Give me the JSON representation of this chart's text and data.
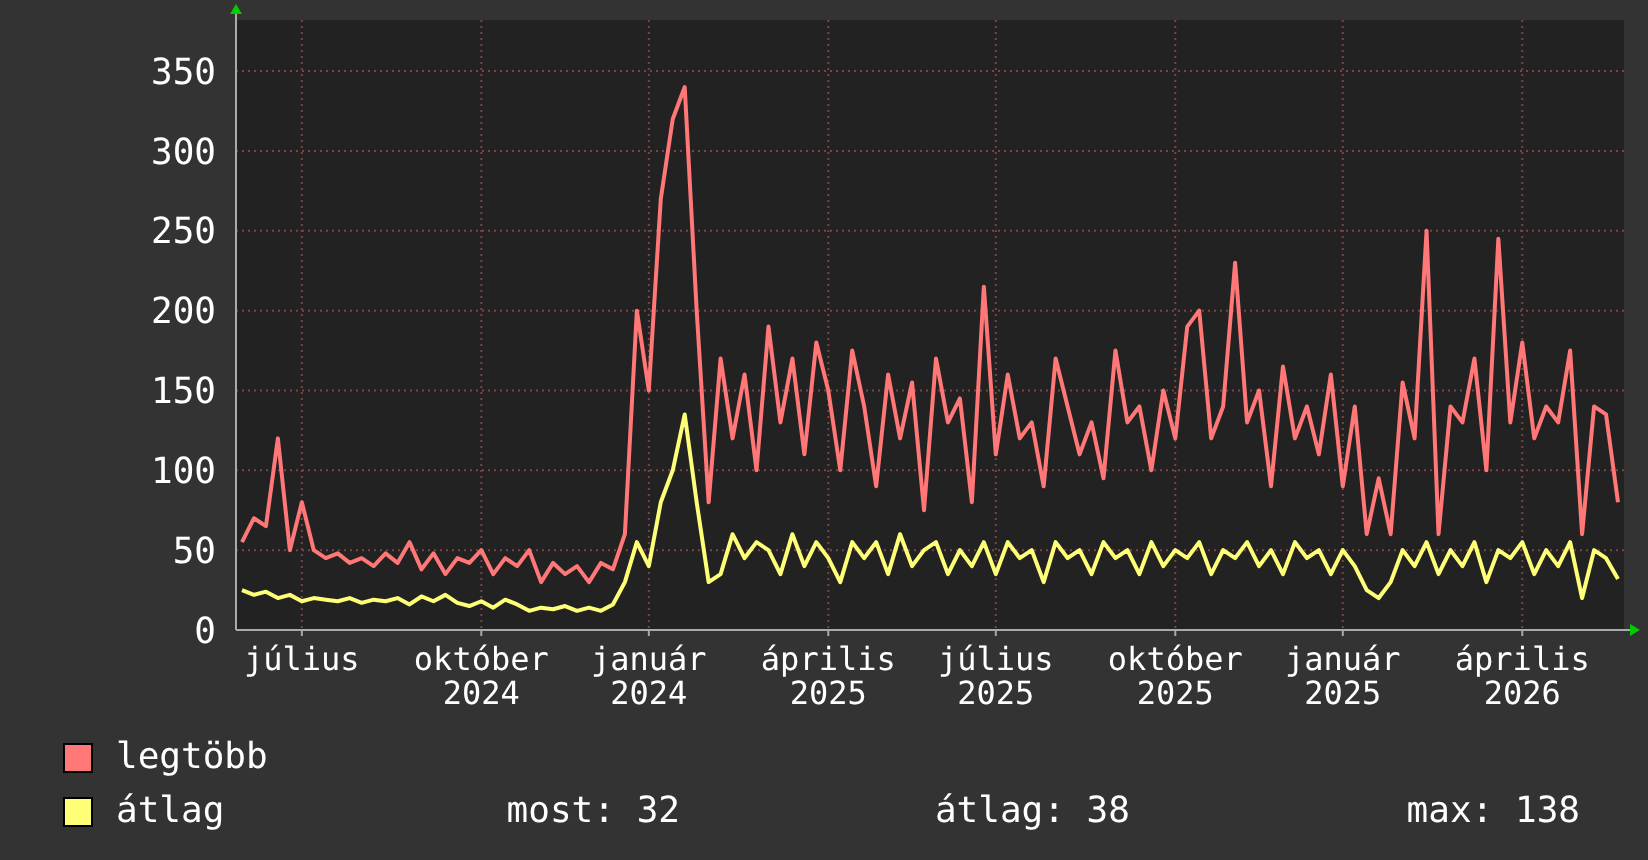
{
  "chart_data": {
    "type": "line",
    "categories": [
      null,
      null,
      null,
      null,
      null,
      "július",
      null,
      null,
      null,
      null,
      null,
      null,
      null,
      null,
      null,
      null,
      null,
      null,
      null,
      null,
      "október 2024",
      null,
      null,
      null,
      null,
      null,
      null,
      null,
      null,
      null,
      null,
      null,
      null,
      null,
      "január 2024",
      null,
      null,
      null,
      null,
      null,
      null,
      null,
      null,
      null,
      null,
      null,
      null,
      null,
      null,
      "április 2025",
      null,
      null,
      null,
      null,
      null,
      null,
      null,
      null,
      null,
      null,
      null,
      null,
      null,
      "július 2025",
      null,
      null,
      null,
      null,
      null,
      null,
      null,
      null,
      null,
      null,
      null,
      null,
      null,
      null,
      "október 2025",
      null,
      null,
      null,
      null,
      null,
      null,
      null,
      null,
      null,
      null,
      null,
      null,
      null,
      "január 2025",
      null,
      null,
      null,
      null,
      null,
      null,
      null,
      null,
      null,
      null,
      null,
      null,
      null,
      null,
      "április 2026",
      null,
      null,
      null,
      null,
      null,
      null,
      null,
      null
    ],
    "series": [
      {
        "name": "legtöbb",
        "color": "#ff7777",
        "values": [
          55,
          70,
          65,
          120,
          50,
          80,
          50,
          45,
          48,
          42,
          45,
          40,
          48,
          42,
          55,
          38,
          48,
          35,
          45,
          42,
          50,
          35,
          45,
          40,
          50,
          30,
          42,
          35,
          40,
          30,
          42,
          38,
          60,
          200,
          150,
          270,
          320,
          340,
          200,
          80,
          170,
          120,
          160,
          100,
          190,
          130,
          170,
          110,
          180,
          150,
          100,
          175,
          140,
          90,
          160,
          120,
          155,
          75,
          170,
          130,
          145,
          80,
          215,
          110,
          160,
          120,
          130,
          90,
          170,
          140,
          110,
          130,
          95,
          175,
          130,
          140,
          100,
          150,
          120,
          190,
          200,
          120,
          140,
          230,
          130,
          150,
          90,
          165,
          120,
          140,
          110,
          160,
          90,
          140,
          60,
          95,
          60,
          155,
          120,
          250,
          60,
          140,
          130,
          170,
          100,
          245,
          130,
          180,
          120,
          140,
          130,
          175,
          60,
          140,
          135,
          80
        ]
      },
      {
        "name": "átlag",
        "color": "#ffff77",
        "values": [
          25,
          22,
          24,
          20,
          22,
          18,
          20,
          19,
          18,
          20,
          17,
          19,
          18,
          20,
          16,
          21,
          18,
          22,
          17,
          15,
          18,
          14,
          19,
          16,
          12,
          14,
          13,
          15,
          12,
          14,
          12,
          16,
          30,
          55,
          40,
          80,
          100,
          135,
          80,
          30,
          35,
          60,
          45,
          55,
          50,
          35,
          60,
          40,
          55,
          45,
          30,
          55,
          45,
          55,
          35,
          60,
          40,
          50,
          55,
          35,
          50,
          40,
          55,
          35,
          55,
          45,
          50,
          30,
          55,
          45,
          50,
          35,
          55,
          45,
          50,
          35,
          55,
          40,
          50,
          45,
          55,
          35,
          50,
          45,
          55,
          40,
          50,
          35,
          55,
          45,
          50,
          35,
          50,
          40,
          25,
          20,
          30,
          50,
          40,
          55,
          35,
          50,
          40,
          55,
          30,
          50,
          45,
          55,
          35,
          50,
          40,
          55,
          20,
          50,
          45,
          32
        ]
      }
    ],
    "ylim": [
      0,
      382
    ],
    "yticks": [
      0,
      50,
      100,
      150,
      200,
      250,
      300,
      350
    ],
    "grid": true,
    "legend": "bottom left",
    "line_style": "solid",
    "annotations": [
      "most: 32",
      "átlag: 38",
      "max: 138"
    ]
  }
}
